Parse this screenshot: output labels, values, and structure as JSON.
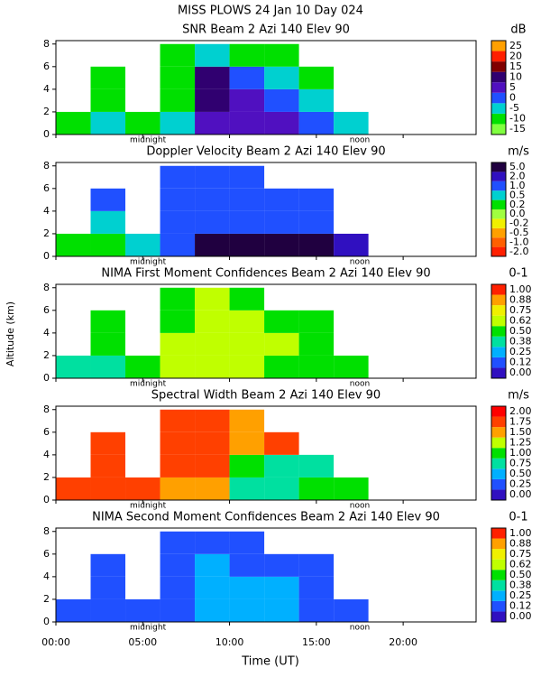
{
  "title": "MISS PLOWS  24 Jan 10 Day 024",
  "xlabel": "Time (UT)",
  "ylabel": "Altitude (km)",
  "x_axis": {
    "xlim": [
      0,
      24.2
    ],
    "xticks": [
      {
        "value": 0,
        "label": "00:00"
      },
      {
        "value": 5,
        "label": "05:00"
      },
      {
        "value": 10,
        "label": "10:00"
      },
      {
        "value": 15,
        "label": "15:00"
      },
      {
        "value": 20,
        "label": "20:00"
      }
    ]
  },
  "annotations": [
    {
      "text": "midnight",
      "x": 5.3
    },
    {
      "text": "noon",
      "x": 17.5
    }
  ],
  "chart_data": [
    {
      "type": "heatmap",
      "title": "SNR Beam 2 Azi 140 Elev 90",
      "unit": "dB",
      "ylim": [
        0,
        8.3
      ],
      "yticks": [
        0,
        2,
        4,
        6,
        8
      ],
      "x_bins": [
        0,
        2,
        4,
        6,
        8,
        10,
        12,
        14,
        16,
        18
      ],
      "y_bins": [
        0,
        2,
        4,
        6,
        8
      ],
      "z": [
        [
          -8,
          -5,
          -8,
          -5,
          5,
          3,
          5,
          0,
          -5
        ],
        [
          null,
          -10,
          null,
          -12,
          10,
          5,
          0,
          -5,
          null
        ],
        [
          null,
          -12,
          null,
          -10,
          8,
          0,
          -5,
          -10,
          null
        ],
        [
          null,
          null,
          null,
          -12,
          -5,
          -10,
          -12,
          null,
          null
        ]
      ],
      "cticks": [
        -15,
        -10,
        -5,
        0,
        5,
        10,
        15,
        20,
        25
      ],
      "colors": [
        "#80ff40",
        "#00e000",
        "#00d0d0",
        "#2050ff",
        "#5010c0",
        "#300070",
        "#800000",
        "#ff2000",
        "#ffa000"
      ]
    },
    {
      "type": "heatmap",
      "title": "Doppler Velocity Beam 2 Azi 140 Elev 90",
      "unit": "m/s",
      "ylim": [
        0,
        8.3
      ],
      "yticks": [
        0,
        2,
        4,
        6,
        8
      ],
      "x_bins": [
        0,
        2,
        4,
        6,
        8,
        10,
        12,
        14,
        16,
        18
      ],
      "y_bins": [
        0,
        2,
        4,
        6,
        8
      ],
      "z": [
        [
          0.2,
          0.2,
          0.5,
          1,
          5,
          5,
          5,
          5,
          2
        ],
        [
          null,
          0.5,
          null,
          1,
          1,
          1,
          1,
          1,
          null
        ],
        [
          null,
          1,
          null,
          1,
          1,
          1,
          1,
          1,
          null
        ],
        [
          null,
          null,
          null,
          1,
          1,
          1,
          null,
          null,
          null
        ]
      ],
      "cticks": [
        {
          "value": -2,
          "label": "-2.0"
        },
        {
          "value": -1,
          "label": "-1.0"
        },
        -0.5,
        -0.2,
        {
          "value": 0,
          "label": "0.0"
        },
        0.2,
        0.5,
        {
          "value": 1,
          "label": "1.0"
        },
        {
          "value": 2,
          "label": "2.0"
        },
        {
          "value": 5,
          "label": "5.0"
        }
      ],
      "colors": [
        "#ff2000",
        "#ff6000",
        "#ffa000",
        "#f0f000",
        "#a0ff40",
        "#00e000",
        "#00d0d0",
        "#2050ff",
        "#3010c0",
        "#200040"
      ]
    },
    {
      "type": "heatmap",
      "title": "NIMA First Moment Confidences Beam 2 Azi 140 Elev 90",
      "unit": "0-1",
      "ylim": [
        0,
        8.3
      ],
      "yticks": [
        0,
        2,
        4,
        6,
        8
      ],
      "x_bins": [
        0,
        2,
        4,
        6,
        8,
        10,
        12,
        14,
        16,
        18
      ],
      "y_bins": [
        0,
        2,
        4,
        6,
        8
      ],
      "z": [
        [
          0.38,
          0.38,
          0.5,
          0.62,
          0.62,
          0.62,
          0.5,
          0.5,
          0.5
        ],
        [
          null,
          0.5,
          null,
          0.62,
          0.62,
          0.62,
          0.62,
          0.5,
          null
        ],
        [
          null,
          0.5,
          null,
          0.5,
          0.62,
          0.62,
          0.5,
          0.5,
          null
        ],
        [
          null,
          null,
          null,
          0.5,
          0.62,
          0.5,
          null,
          null,
          null
        ]
      ],
      "cticks": [
        {
          "value": 0,
          "label": "0.00"
        },
        0.12,
        0.25,
        0.38,
        {
          "value": 0.5,
          "label": "0.50"
        },
        0.62,
        0.75,
        0.88,
        {
          "value": 1,
          "label": "1.00"
        }
      ],
      "colors": [
        "#3010c0",
        "#2050ff",
        "#00b0ff",
        "#00e0a0",
        "#00e000",
        "#c0ff00",
        "#f0f000",
        "#ffa000",
        "#ff2000"
      ]
    },
    {
      "type": "heatmap",
      "title": "Spectral Width Beam 2 Azi 140 Elev 90",
      "unit": "m/s",
      "ylim": [
        0,
        8.3
      ],
      "yticks": [
        0,
        2,
        4,
        6,
        8
      ],
      "x_bins": [
        0,
        2,
        4,
        6,
        8,
        10,
        12,
        14,
        16,
        18
      ],
      "y_bins": [
        0,
        2,
        4,
        6,
        8
      ],
      "z": [
        [
          1.75,
          1.75,
          1.75,
          1.5,
          1.5,
          0.75,
          0.75,
          1,
          1
        ],
        [
          null,
          1.75,
          null,
          1.75,
          1.75,
          1,
          0.75,
          0.75,
          null
        ],
        [
          null,
          1.75,
          null,
          1.75,
          1.75,
          1.5,
          1.75,
          null,
          null
        ],
        [
          null,
          null,
          null,
          1.75,
          1.75,
          1.5,
          null,
          null,
          null
        ]
      ],
      "cticks": [
        {
          "value": 0,
          "label": "0.00"
        },
        0.25,
        {
          "value": 0.5,
          "label": "0.50"
        },
        0.75,
        {
          "value": 1,
          "label": "1.00"
        },
        1.25,
        {
          "value": 1.5,
          "label": "1.50"
        },
        1.75,
        {
          "value": 2,
          "label": "2.00"
        }
      ],
      "colors": [
        "#3010c0",
        "#2050ff",
        "#00b0ff",
        "#00e0a0",
        "#00e000",
        "#c0ff00",
        "#ffa000",
        "#ff4000",
        "#ff0000"
      ]
    },
    {
      "type": "heatmap",
      "title": "NIMA Second Moment Confidences Beam 2 Azi 140 Elev 90",
      "unit": "0-1",
      "ylim": [
        0,
        8.3
      ],
      "yticks": [
        0,
        2,
        4,
        6,
        8
      ],
      "x_bins": [
        0,
        2,
        4,
        6,
        8,
        10,
        12,
        14,
        16,
        18
      ],
      "y_bins": [
        0,
        2,
        4,
        6,
        8
      ],
      "z": [
        [
          0.12,
          0.12,
          0.12,
          0.12,
          0.25,
          0.25,
          0.25,
          0.12,
          0.12
        ],
        [
          null,
          0.12,
          null,
          0.12,
          0.25,
          0.25,
          0.25,
          0.12,
          null
        ],
        [
          null,
          0.12,
          null,
          0.12,
          0.25,
          0.12,
          0.12,
          0.12,
          null
        ],
        [
          null,
          null,
          null,
          0.12,
          0.12,
          0.12,
          null,
          null,
          null
        ]
      ],
      "cticks": [
        {
          "value": 0,
          "label": "0.00"
        },
        0.12,
        0.25,
        0.38,
        {
          "value": 0.5,
          "label": "0.50"
        },
        0.62,
        0.75,
        0.88,
        {
          "value": 1,
          "label": "1.00"
        }
      ],
      "colors": [
        "#3010c0",
        "#2050ff",
        "#00b0ff",
        "#00e0a0",
        "#00e000",
        "#c0ff00",
        "#f0f000",
        "#ffa000",
        "#ff2000"
      ]
    }
  ]
}
